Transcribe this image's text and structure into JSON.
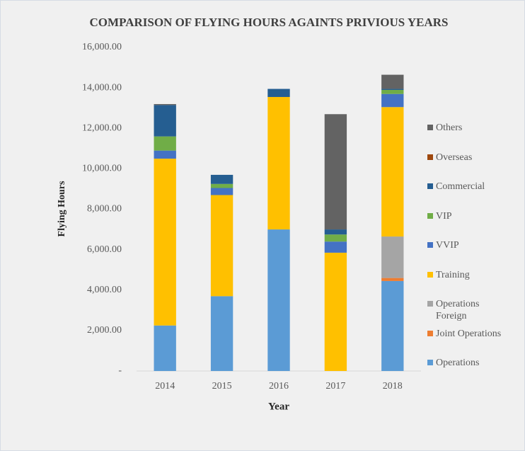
{
  "chart_data": {
    "type": "stacked_bar",
    "title": "COMPARISON OF FLYING HOURS AGAINTS PRIVIOUS YEARS",
    "xlabel": "Year",
    "ylabel": "Flying Hours",
    "categories": [
      "2014",
      "2015",
      "2016",
      "2017",
      "2018"
    ],
    "series": [
      {
        "name": "Operations",
        "color": "#5b9bd5",
        "values": [
          2250,
          3700,
          7000,
          0,
          4450
        ]
      },
      {
        "name": "Joint Operations",
        "color": "#ed7d31",
        "values": [
          0,
          0,
          0,
          0,
          150
        ]
      },
      {
        "name": "Operations Foreign",
        "color": "#a5a5a5",
        "values": [
          0,
          0,
          0,
          0,
          2050
        ]
      },
      {
        "name": "Training",
        "color": "#ffc000",
        "values": [
          8250,
          5000,
          6550,
          5850,
          6400
        ]
      },
      {
        "name": "VVIP",
        "color": "#4472c4",
        "values": [
          400,
          350,
          0,
          550,
          650
        ]
      },
      {
        "name": "VIP",
        "color": "#70ad47",
        "values": [
          700,
          200,
          0,
          350,
          200
        ]
      },
      {
        "name": "Commercial",
        "color": "#255e91",
        "values": [
          1550,
          450,
          400,
          250,
          50
        ]
      },
      {
        "name": "Overseas",
        "color": "#9e480e",
        "values": [
          0,
          0,
          0,
          0,
          0
        ]
      },
      {
        "name": "Others",
        "color": "#636363",
        "values": [
          50,
          0,
          0,
          5700,
          700
        ]
      }
    ],
    "ylim": [
      0,
      16000
    ],
    "yticks": [
      {
        "value": 0,
        "label": "-"
      },
      {
        "value": 2000,
        "label": "2,000.00"
      },
      {
        "value": 4000,
        "label": "4,000.00"
      },
      {
        "value": 6000,
        "label": "6,000.00"
      },
      {
        "value": 8000,
        "label": "8,000.00"
      },
      {
        "value": 10000,
        "label": "10,000.00"
      },
      {
        "value": 12000,
        "label": "12,000.00"
      },
      {
        "value": 14000,
        "label": "14,000.00"
      },
      {
        "value": 16000,
        "label": "16,000.00"
      }
    ],
    "grid": false,
    "legend": "right"
  }
}
